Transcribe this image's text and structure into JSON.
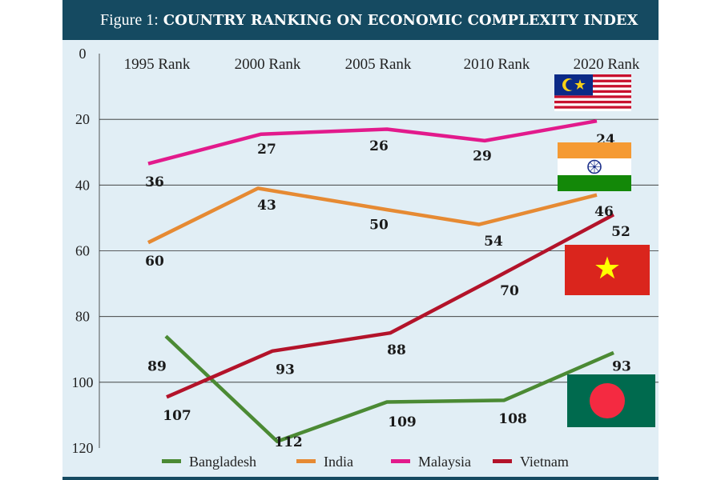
{
  "header": {
    "figure_label": "Figure 1:",
    "title": "COUNTRY RANKING ON ECONOMIC COMPLEXITY INDEX"
  },
  "chart_data": {
    "type": "line",
    "title": "COUNTRY RANKING ON ECONOMIC COMPLEXITY INDEX",
    "categories": [
      "1995 Rank",
      "2000 Rank",
      "2005 Rank",
      "2010 Rank",
      "2020 Rank"
    ],
    "y_ticks": [
      "0",
      "20",
      "40",
      "60",
      "80",
      "100",
      "120"
    ],
    "ylim": [
      0,
      120
    ],
    "y_inverted": true,
    "grid": true,
    "legend_position": "bottom",
    "series": [
      {
        "name": "Bangladesh",
        "color": "#4b8a34",
        "values": [
          89,
          112,
          109,
          108,
          93
        ]
      },
      {
        "name": "India",
        "color": "#e68a33",
        "values": [
          60,
          43,
          50,
          54,
          46
        ]
      },
      {
        "name": "Malaysia",
        "color": "#e21a8c",
        "values": [
          36,
          27,
          26,
          29,
          24
        ]
      },
      {
        "name": "Vietnam",
        "color": "#b3132a",
        "values": [
          107,
          93,
          88,
          70,
          52
        ]
      }
    ],
    "flags": [
      {
        "country": "Malaysia",
        "icon": "malaysia-flag-icon"
      },
      {
        "country": "India",
        "icon": "india-flag-icon"
      },
      {
        "country": "Vietnam",
        "icon": "vietnam-flag-icon"
      },
      {
        "country": "Bangladesh",
        "icon": "bangladesh-flag-icon"
      }
    ]
  }
}
